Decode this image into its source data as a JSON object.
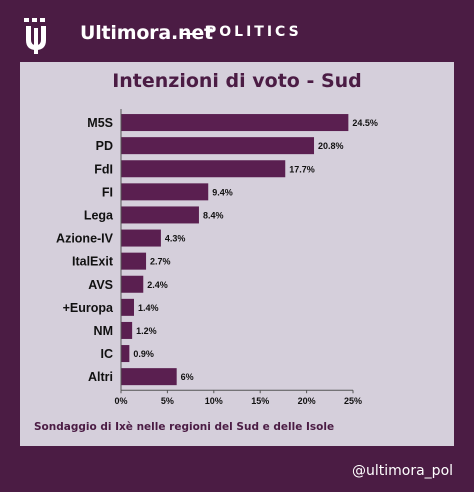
{
  "header": {
    "brand": "Ultimora.net",
    "section": "POLITICS"
  },
  "colors": {
    "background": "#4b1c44",
    "panel": "#d5cfdb",
    "bar": "#5a1f50",
    "text": "#4b1c44"
  },
  "footnote": "Sondaggio di Ixè nelle regioni del Sud e delle Isole",
  "handle": "@ultimora_pol",
  "chart_data": {
    "type": "bar",
    "orientation": "horizontal",
    "title": "Intenzioni di voto - Sud",
    "categories": [
      "M5S",
      "PD",
      "FdI",
      "FI",
      "Lega",
      "Azione-IV",
      "ItalExit",
      "AVS",
      "+Europa",
      "NM",
      "IC",
      "Altri"
    ],
    "values": [
      24.5,
      20.8,
      17.7,
      9.4,
      8.4,
      4.3,
      2.7,
      2.4,
      1.4,
      1.2,
      0.9,
      6
    ],
    "value_labels": [
      "24.5%",
      "20.8%",
      "17.7%",
      "9.4%",
      "8.4%",
      "4.3%",
      "2.7%",
      "2.4%",
      "1.4%",
      "1.2%",
      "0.9%",
      "6%"
    ],
    "xlim": [
      0,
      25
    ],
    "xticks": [
      0,
      5,
      10,
      15,
      20,
      25
    ],
    "xtick_labels": [
      "0%",
      "5%",
      "10%",
      "15%",
      "20%",
      "25%"
    ],
    "grid": false,
    "legend": "none"
  }
}
